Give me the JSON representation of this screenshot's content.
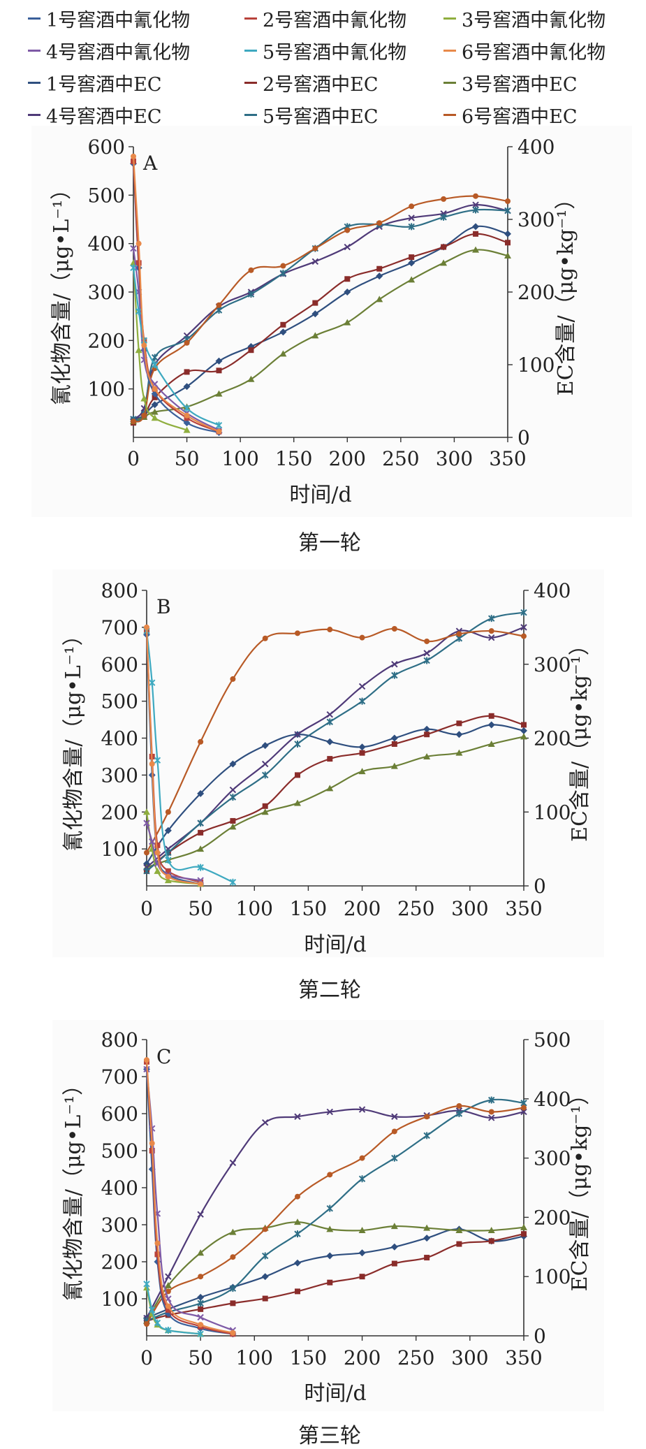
{
  "legend": [
    {
      "name": "1号窖酒中氰化物",
      "color": "#3a5f9a",
      "marker": "diamond",
      "dash": true
    },
    {
      "name": "2号窖酒中氰化物",
      "color": "#b8423b",
      "marker": "square",
      "dash": true
    },
    {
      "name": "3号窖酒中氰化物",
      "color": "#8fae3e",
      "marker": "triangle",
      "dash": true
    },
    {
      "name": "4号窖酒中氰化物",
      "color": "#7e5aa6",
      "marker": "x",
      "dash": true
    },
    {
      "name": "5号窖酒中氰化物",
      "color": "#3ea9c0",
      "marker": "star",
      "dash": true
    },
    {
      "name": "6号窖酒中氰化物",
      "color": "#e8894a",
      "marker": "circle",
      "dash": true
    },
    {
      "name": "1号窖酒中EC",
      "color": "#2f4f7f",
      "marker": "diamond",
      "dash": true
    },
    {
      "name": "2号窖酒中EC",
      "color": "#8a2c2a",
      "marker": "square",
      "dash": true
    },
    {
      "name": "3号窖酒中EC",
      "color": "#6b7f36",
      "marker": "triangle",
      "dash": true
    },
    {
      "name": "4号窖酒中EC",
      "color": "#4f3a78",
      "marker": "x",
      "dash": true
    },
    {
      "name": "5号窖酒中EC",
      "color": "#2e6e86",
      "marker": "star",
      "dash": true
    },
    {
      "name": "6号窖酒中EC",
      "color": "#b85a26",
      "marker": "circle",
      "dash": true
    }
  ],
  "chart_data": [
    {
      "type": "line",
      "label": "A",
      "caption": "第一轮",
      "xlabel": "时间/d",
      "ylabel_left": "氰化物含量/（μg•L⁻¹）",
      "ylabel_right": "EC含量/（μg•kg⁻¹）",
      "xlim": [
        0,
        350
      ],
      "ylim_left": [
        0,
        600
      ],
      "ylim_right": [
        0,
        400
      ],
      "xticks": [
        0,
        50,
        100,
        150,
        200,
        250,
        300,
        350
      ],
      "yticks_left": [
        100,
        200,
        300,
        400,
        500,
        600
      ],
      "yticks_right": [
        0,
        100,
        200,
        300,
        400
      ],
      "cyanide_series": [
        {
          "name": "1号窖酒中氰化物",
          "x": [
            0,
            5,
            10,
            20,
            50,
            80
          ],
          "y": [
            565,
            350,
            180,
            90,
            30,
            10
          ]
        },
        {
          "name": "2号窖酒中氰化物",
          "x": [
            0,
            5,
            10,
            20,
            50,
            80
          ],
          "y": [
            570,
            360,
            200,
            100,
            40,
            12
          ]
        },
        {
          "name": "3号窖酒中氰化物",
          "x": [
            0,
            5,
            10,
            20,
            50
          ],
          "y": [
            360,
            180,
            80,
            40,
            15
          ]
        },
        {
          "name": "4号窖酒中氰化物",
          "x": [
            0,
            5,
            10,
            20,
            50,
            80
          ],
          "y": [
            390,
            300,
            160,
            110,
            50,
            15
          ]
        },
        {
          "name": "5号窖酒中氰化物",
          "x": [
            0,
            5,
            10,
            20,
            50,
            80
          ],
          "y": [
            350,
            260,
            200,
            150,
            60,
            25
          ]
        },
        {
          "name": "6号窖酒中氰化物",
          "x": [
            0,
            5,
            10,
            20,
            50,
            80
          ],
          "y": [
            580,
            400,
            190,
            100,
            45,
            12
          ]
        }
      ],
      "ec_series": [
        {
          "name": "1号窖酒中EC",
          "x": [
            0,
            10,
            20,
            50,
            80,
            110,
            140,
            170,
            200,
            230,
            260,
            290,
            320,
            350
          ],
          "y": [
            25,
            30,
            45,
            70,
            105,
            125,
            145,
            170,
            200,
            222,
            240,
            262,
            290,
            280
          ]
        },
        {
          "name": "2号窖酒中EC",
          "x": [
            0,
            10,
            20,
            50,
            80,
            110,
            140,
            170,
            200,
            230,
            260,
            290,
            320,
            350
          ],
          "y": [
            20,
            28,
            55,
            90,
            92,
            120,
            155,
            185,
            218,
            232,
            248,
            262,
            280,
            268
          ]
        },
        {
          "name": "3号窖酒中EC",
          "x": [
            0,
            10,
            20,
            50,
            80,
            110,
            140,
            170,
            200,
            230,
            260,
            290,
            320,
            350
          ],
          "y": [
            22,
            28,
            35,
            42,
            60,
            80,
            115,
            140,
            158,
            190,
            217,
            240,
            258,
            250
          ]
        },
        {
          "name": "4号窖酒中EC",
          "x": [
            0,
            10,
            20,
            50,
            80,
            110,
            140,
            170,
            200,
            230,
            260,
            290,
            320,
            350
          ],
          "y": [
            25,
            40,
            100,
            140,
            180,
            200,
            225,
            242,
            262,
            290,
            302,
            308,
            320,
            312
          ]
        },
        {
          "name": "5号窖酒中EC",
          "x": [
            0,
            10,
            20,
            50,
            80,
            110,
            140,
            170,
            200,
            230,
            260,
            290,
            320,
            350
          ],
          "y": [
            25,
            32,
            110,
            135,
            175,
            197,
            226,
            260,
            290,
            293,
            290,
            303,
            313,
            312
          ]
        },
        {
          "name": "6号窖酒中EC",
          "x": [
            0,
            10,
            20,
            50,
            80,
            110,
            140,
            170,
            200,
            230,
            260,
            290,
            320,
            350
          ],
          "y": [
            22,
            30,
            95,
            130,
            182,
            230,
            236,
            260,
            285,
            295,
            318,
            328,
            332,
            325
          ]
        }
      ]
    },
    {
      "type": "line",
      "label": "B",
      "caption": "第二轮",
      "xlabel": "时间/d",
      "ylabel_left": "氰化物含量/（μg•L⁻¹）",
      "ylabel_right": "EC含量/（μg•kg⁻¹）",
      "xlim": [
        0,
        350
      ],
      "ylim_left": [
        0,
        800
      ],
      "ylim_right": [
        0,
        400
      ],
      "xticks": [
        0,
        50,
        100,
        150,
        200,
        250,
        300,
        350
      ],
      "yticks_left": [
        100,
        200,
        300,
        400,
        500,
        600,
        700,
        800
      ],
      "yticks_right": [
        0,
        100,
        200,
        300,
        400
      ],
      "cyanide_series": [
        {
          "name": "1号窖酒中氰化物",
          "x": [
            0,
            5,
            10,
            20,
            50
          ],
          "y": [
            680,
            300,
            90,
            30,
            5
          ]
        },
        {
          "name": "2号窖酒中氰化物",
          "x": [
            0,
            5,
            10,
            20,
            50
          ],
          "y": [
            690,
            350,
            110,
            40,
            10
          ]
        },
        {
          "name": "3号窖酒中氰化物",
          "x": [
            0,
            5,
            10,
            20,
            50
          ],
          "y": [
            200,
            100,
            40,
            15,
            5
          ]
        },
        {
          "name": "4号窖酒中氰化物",
          "x": [
            0,
            5,
            10,
            20,
            50
          ],
          "y": [
            170,
            120,
            60,
            30,
            15
          ]
        },
        {
          "name": "5号窖酒中氰化物",
          "x": [
            0,
            5,
            10,
            20,
            50,
            80
          ],
          "y": [
            690,
            550,
            340,
            70,
            50,
            10
          ]
        },
        {
          "name": "6号窖酒中氰化物",
          "x": [
            0,
            5,
            10,
            20,
            50
          ],
          "y": [
            700,
            330,
            90,
            25,
            5
          ]
        }
      ],
      "ec_series": [
        {
          "name": "1号窖酒中EC",
          "x": [
            0,
            20,
            50,
            80,
            110,
            140,
            170,
            200,
            230,
            260,
            290,
            320,
            350
          ],
          "y": [
            30,
            75,
            125,
            165,
            190,
            205,
            195,
            188,
            200,
            212,
            205,
            218,
            210
          ]
        },
        {
          "name": "2号窖酒中EC",
          "x": [
            0,
            20,
            50,
            80,
            110,
            140,
            170,
            200,
            230,
            260,
            290,
            320,
            350
          ],
          "y": [
            20,
            45,
            72,
            88,
            108,
            150,
            172,
            180,
            192,
            205,
            220,
            230,
            218
          ]
        },
        {
          "name": "3号窖酒中EC",
          "x": [
            0,
            20,
            50,
            80,
            110,
            140,
            170,
            200,
            230,
            260,
            290,
            320,
            350
          ],
          "y": [
            25,
            35,
            50,
            80,
            100,
            112,
            132,
            155,
            162,
            175,
            180,
            192,
            202
          ]
        },
        {
          "name": "4号窖酒中EC",
          "x": [
            0,
            20,
            50,
            80,
            110,
            140,
            170,
            200,
            230,
            260,
            290,
            320,
            350
          ],
          "y": [
            25,
            50,
            85,
            130,
            165,
            205,
            232,
            270,
            300,
            315,
            345,
            336,
            350
          ]
        },
        {
          "name": "5号窖酒中EC",
          "x": [
            0,
            20,
            50,
            80,
            110,
            140,
            170,
            200,
            230,
            260,
            290,
            320,
            350
          ],
          "y": [
            20,
            45,
            85,
            120,
            150,
            192,
            222,
            250,
            285,
            305,
            335,
            362,
            370
          ]
        },
        {
          "name": "6号窖酒中EC",
          "x": [
            0,
            20,
            50,
            80,
            110,
            140,
            170,
            200,
            230,
            260,
            290,
            320,
            350
          ],
          "y": [
            45,
            100,
            195,
            280,
            335,
            342,
            347,
            336,
            348,
            331,
            341,
            345,
            338
          ]
        }
      ]
    },
    {
      "type": "line",
      "label": "C",
      "caption": "第三轮",
      "xlabel": "时间/d",
      "ylabel_left": "氰化物含量/（μg•L⁻¹）",
      "ylabel_right": "EC含量/（μg•kg⁻¹）",
      "xlim": [
        0,
        350
      ],
      "ylim_left": [
        0,
        800
      ],
      "ylim_right": [
        0,
        500
      ],
      "xticks": [
        0,
        50,
        100,
        150,
        200,
        250,
        300,
        350
      ],
      "yticks_left": [
        100,
        200,
        300,
        400,
        500,
        600,
        700,
        800
      ],
      "yticks_right": [
        0,
        100,
        200,
        300,
        400,
        500
      ],
      "cyanide_series": [
        {
          "name": "1号窖酒中氰化物",
          "x": [
            0,
            5,
            10,
            20,
            50,
            80
          ],
          "y": [
            720,
            450,
            200,
            60,
            20,
            5
          ]
        },
        {
          "name": "2号窖酒中氰化物",
          "x": [
            0,
            5,
            10,
            20,
            50,
            80
          ],
          "y": [
            740,
            500,
            220,
            70,
            25,
            5
          ]
        },
        {
          "name": "3号窖酒中氰化物",
          "x": [
            0,
            5,
            10,
            20,
            50
          ],
          "y": [
            130,
            60,
            30,
            15,
            5
          ]
        },
        {
          "name": "4号窖酒中氰化物",
          "x": [
            0,
            5,
            10,
            20,
            50,
            80
          ],
          "y": [
            720,
            560,
            330,
            100,
            50,
            15
          ]
        },
        {
          "name": "5号窖酒中氰化物",
          "x": [
            0,
            5,
            10,
            20,
            50
          ],
          "y": [
            140,
            70,
            35,
            15,
            5
          ]
        },
        {
          "name": "6号窖酒中氰化物",
          "x": [
            0,
            5,
            10,
            20,
            50,
            80
          ],
          "y": [
            745,
            520,
            250,
            80,
            30,
            8
          ]
        }
      ],
      "ec_series": [
        {
          "name": "1号窖酒中EC",
          "x": [
            0,
            20,
            50,
            80,
            110,
            140,
            170,
            200,
            230,
            260,
            290,
            320,
            350
          ],
          "y": [
            30,
            45,
            65,
            82,
            100,
            123,
            135,
            140,
            150,
            165,
            180,
            160,
            168
          ]
        },
        {
          "name": "2号窖酒中EC",
          "x": [
            0,
            20,
            50,
            80,
            110,
            140,
            170,
            200,
            230,
            260,
            290,
            320,
            350
          ],
          "y": [
            25,
            35,
            45,
            55,
            63,
            75,
            90,
            100,
            122,
            132,
            155,
            160,
            172
          ]
        },
        {
          "name": "3号窖酒中EC",
          "x": [
            0,
            20,
            50,
            80,
            110,
            140,
            170,
            200,
            230,
            260,
            290,
            320,
            350
          ],
          "y": [
            25,
            85,
            140,
            175,
            182,
            192,
            180,
            178,
            185,
            182,
            178,
            178,
            183
          ]
        },
        {
          "name": "4号窖酒中EC",
          "x": [
            0,
            20,
            50,
            80,
            110,
            140,
            170,
            200,
            230,
            260,
            290,
            320,
            350
          ],
          "y": [
            30,
            100,
            205,
            292,
            360,
            370,
            378,
            382,
            370,
            372,
            380,
            368,
            378
          ]
        },
        {
          "name": "5号窖酒中EC",
          "x": [
            0,
            20,
            50,
            80,
            110,
            140,
            170,
            200,
            230,
            260,
            290,
            320,
            350
          ],
          "y": [
            25,
            40,
            55,
            80,
            135,
            172,
            215,
            265,
            300,
            338,
            375,
            398,
            393
          ]
        },
        {
          "name": "6号窖酒中EC",
          "x": [
            0,
            20,
            50,
            80,
            110,
            140,
            170,
            200,
            230,
            260,
            290,
            320,
            350
          ],
          "y": [
            20,
            75,
            100,
            133,
            180,
            235,
            272,
            300,
            345,
            370,
            388,
            378,
            385
          ]
        }
      ]
    }
  ]
}
